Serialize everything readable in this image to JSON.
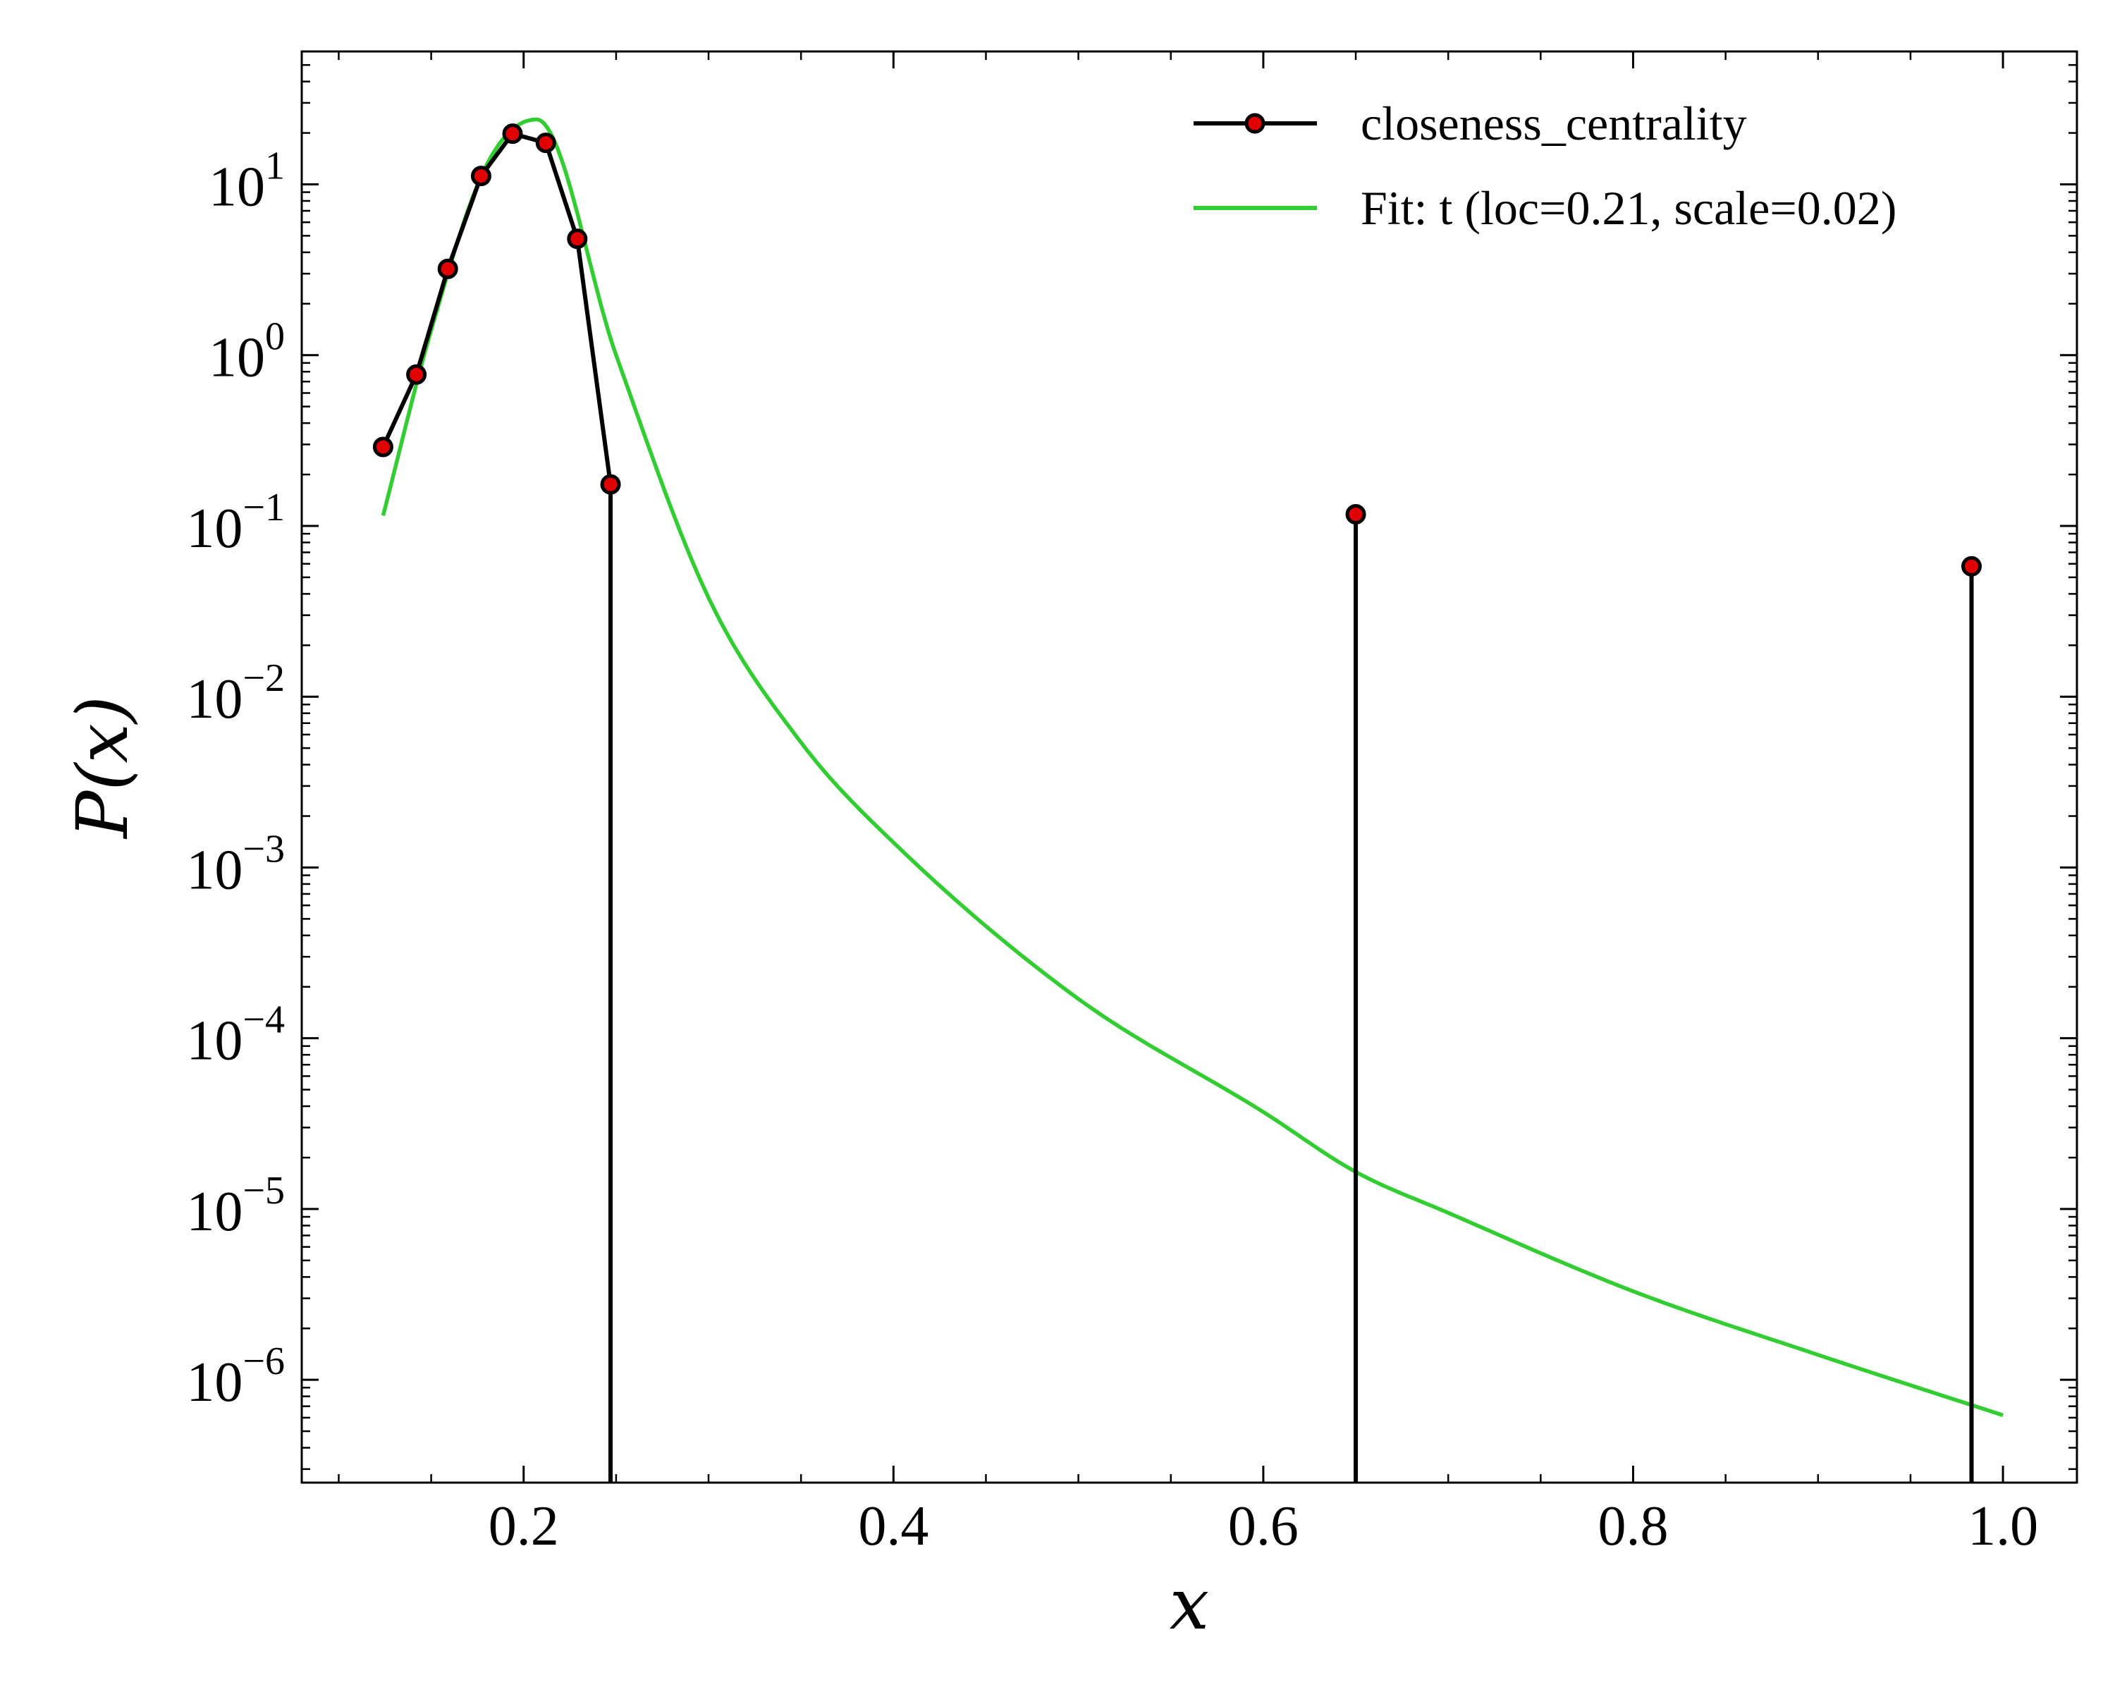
{
  "chart_data": {
    "type": "line",
    "xlabel": "x",
    "ylabel": "P(x)",
    "yscale": "log",
    "xlim": [
      0.08,
      1.04
    ],
    "ylim": [
      2.5e-07,
      60
    ],
    "xticks": [
      0.2,
      0.4,
      0.6,
      0.8,
      1.0
    ],
    "xtick_labels": [
      "0.2",
      "0.4",
      "0.6",
      "0.8",
      "1.0"
    ],
    "yticks": [
      {
        "base": "10",
        "exp": "1",
        "value": 10
      },
      {
        "base": "10",
        "exp": "0",
        "value": 1
      },
      {
        "base": "10",
        "exp": "−1",
        "value": 0.1
      },
      {
        "base": "10",
        "exp": "−2",
        "value": 0.01
      },
      {
        "base": "10",
        "exp": "−3",
        "value": 0.001
      },
      {
        "base": "10",
        "exp": "−4",
        "value": 0.0001
      },
      {
        "base": "10",
        "exp": "−5",
        "value": 1e-05
      },
      {
        "base": "10",
        "exp": "−6",
        "value": 1e-06
      }
    ],
    "grid": false,
    "legend_position": "top-right",
    "series": [
      {
        "name": "closeness_centrality",
        "style": "line-markers",
        "color": "#000000",
        "marker_color": "#e00000",
        "x": [
          0.124,
          0.142,
          0.159,
          0.177,
          0.194,
          0.212,
          0.229,
          0.247,
          0.65,
          0.983
        ],
        "y": [
          0.29,
          0.77,
          3.2,
          11.2,
          19.8,
          17.5,
          4.8,
          0.175,
          0.117,
          0.058
        ]
      },
      {
        "name": "Fit: t (loc=0.21, scale=0.02)",
        "style": "line",
        "color": "#33cc33",
        "x": [
          0.124,
          0.15,
          0.18,
          0.207,
          0.25,
          0.3,
          0.35,
          0.4,
          0.5,
          0.6,
          0.65,
          0.7,
          0.8,
          0.9,
          1.0
        ],
        "y": [
          0.115,
          1.4,
          13.0,
          24.0,
          1.0,
          0.038,
          0.0054,
          0.0014,
          0.00017,
          3.7e-05,
          1.65e-05,
          9.5e-06,
          3.3e-06,
          1.4e-06,
          6.2e-07
        ]
      }
    ]
  }
}
